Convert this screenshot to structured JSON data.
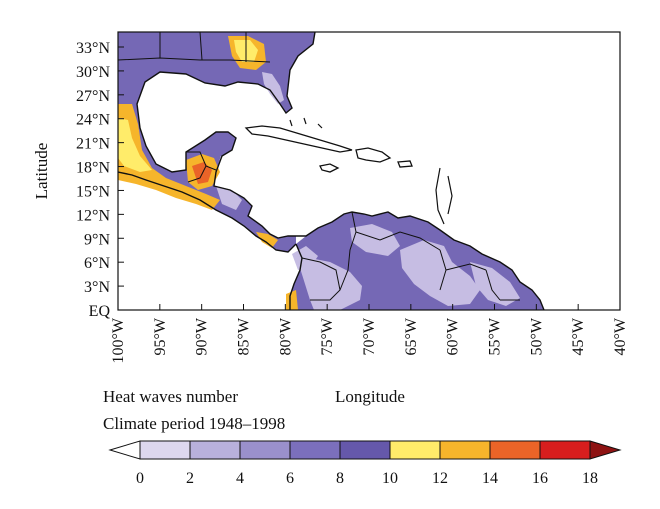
{
  "map": {
    "ylabel": "Latitude",
    "xlabel": "Longitude",
    "lat_ticks": [
      "33°N",
      "30°N",
      "27°N",
      "24°N",
      "21°N",
      "18°N",
      "15°N",
      "12°N",
      "9°N",
      "6°N",
      "3°N",
      "EQ"
    ],
    "lon_ticks": [
      "100°W",
      "95°W",
      "90°W",
      "85°W",
      "80°W",
      "75°W",
      "70°W",
      "65°W",
      "60°W",
      "55°W",
      "50°W",
      "45°W",
      "40°W"
    ],
    "lat_range": [
      0,
      34.5
    ],
    "lon_range": [
      -100,
      -40
    ]
  },
  "caption": {
    "line1": "Heat waves number",
    "line2": "Climate period 1948–1998"
  },
  "colorbar": {
    "ticks": [
      "0",
      "2",
      "4",
      "6",
      "8",
      "10",
      "12",
      "14",
      "16",
      "18"
    ],
    "colors": [
      "#ffffff",
      "#ddd7ee",
      "#b9b1dc",
      "#9a90cc",
      "#7b6fbc",
      "#6558ab",
      "#ffec6a",
      "#f6b52b",
      "#ea6428",
      "#d81e1e",
      "#8e1313"
    ]
  }
}
